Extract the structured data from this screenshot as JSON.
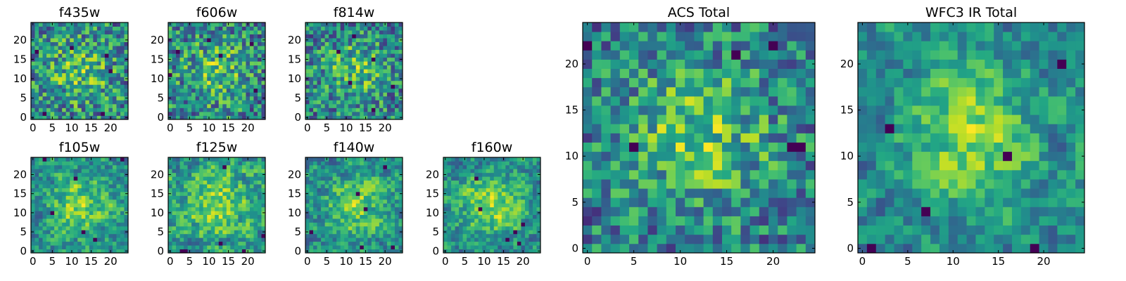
{
  "chart_data": [
    {
      "type": "heatmap",
      "title": "f435w",
      "grid_size": 25,
      "xlim": [
        0,
        25
      ],
      "ylim": [
        0,
        25
      ],
      "xticks": [
        0,
        5,
        10,
        15,
        20
      ],
      "yticks": [
        0,
        5,
        10,
        15,
        20
      ],
      "colormap": "viridis",
      "grid": false,
      "center_strength": 0.35,
      "seed": 435,
      "blur": 0
    },
    {
      "type": "heatmap",
      "title": "f606w",
      "grid_size": 25,
      "xlim": [
        0,
        25
      ],
      "ylim": [
        0,
        25
      ],
      "xticks": [
        0,
        5,
        10,
        15,
        20
      ],
      "yticks": [
        0,
        5,
        10,
        15,
        20
      ],
      "colormap": "viridis",
      "grid": false,
      "center_strength": 0.35,
      "seed": 606,
      "blur": 0
    },
    {
      "type": "heatmap",
      "title": "f814w",
      "grid_size": 25,
      "xlim": [
        0,
        25
      ],
      "ylim": [
        0,
        25
      ],
      "xticks": [
        0,
        5,
        10,
        15,
        20
      ],
      "yticks": [
        0,
        5,
        10,
        15,
        20
      ],
      "colormap": "viridis",
      "grid": false,
      "center_strength": 0.4,
      "seed": 814,
      "blur": 0
    },
    {
      "type": "heatmap",
      "title": "f105w",
      "grid_size": 25,
      "xlim": [
        0,
        25
      ],
      "ylim": [
        0,
        25
      ],
      "xticks": [
        0,
        5,
        10,
        15,
        20
      ],
      "yticks": [
        0,
        5,
        10,
        15,
        20
      ],
      "colormap": "viridis",
      "grid": false,
      "center_strength": 0.45,
      "seed": 105,
      "blur": 1
    },
    {
      "type": "heatmap",
      "title": "f125w",
      "grid_size": 25,
      "xlim": [
        0,
        25
      ],
      "ylim": [
        0,
        25
      ],
      "xticks": [
        0,
        5,
        10,
        15,
        20
      ],
      "yticks": [
        0,
        5,
        10,
        15,
        20
      ],
      "colormap": "viridis",
      "grid": false,
      "center_strength": 0.45,
      "seed": 125,
      "blur": 1
    },
    {
      "type": "heatmap",
      "title": "f140w",
      "grid_size": 25,
      "xlim": [
        0,
        25
      ],
      "ylim": [
        0,
        25
      ],
      "xticks": [
        0,
        5,
        10,
        15,
        20
      ],
      "yticks": [
        0,
        5,
        10,
        15,
        20
      ],
      "colormap": "viridis",
      "grid": false,
      "center_strength": 0.45,
      "seed": 140,
      "blur": 1
    },
    {
      "type": "heatmap",
      "title": "f160w",
      "grid_size": 25,
      "xlim": [
        0,
        25
      ],
      "ylim": [
        0,
        25
      ],
      "xticks": [
        0,
        5,
        10,
        15,
        20
      ],
      "yticks": [
        0,
        5,
        10,
        15,
        20
      ],
      "colormap": "viridis",
      "grid": false,
      "center_strength": 0.6,
      "seed": 160,
      "blur": 1
    },
    {
      "type": "heatmap",
      "title": "ACS Total",
      "grid_size": 25,
      "xlim": [
        0,
        25
      ],
      "ylim": [
        0,
        25
      ],
      "xticks": [
        0,
        5,
        10,
        15,
        20
      ],
      "yticks": [
        0,
        5,
        10,
        15,
        20
      ],
      "colormap": "viridis",
      "grid": false,
      "center_strength": 0.55,
      "seed": 1000,
      "blur": 0
    },
    {
      "type": "heatmap",
      "title": "WFC3 IR Total",
      "grid_size": 25,
      "xlim": [
        0,
        25
      ],
      "ylim": [
        0,
        25
      ],
      "xticks": [
        0,
        5,
        10,
        15,
        20
      ],
      "yticks": [
        0,
        5,
        10,
        15,
        20
      ],
      "colormap": "viridis",
      "grid": false,
      "center_strength": 0.6,
      "seed": 2000,
      "blur": 1
    }
  ]
}
